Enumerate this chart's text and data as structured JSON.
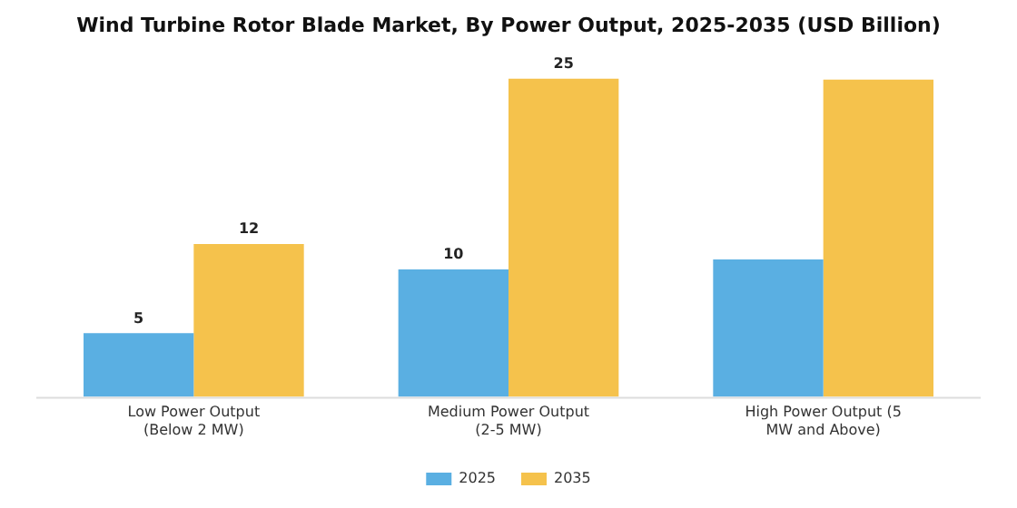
{
  "chart_data": {
    "type": "bar",
    "title": "Wind Turbine Rotor Blade Market, By Power Output, 2025-2035 (USD Billion)",
    "categories": [
      "Low Power Output (Below 2 MW)",
      "Medium Power Output (2-5 MW)",
      "High Power Output (5 MW and Above)"
    ],
    "series": [
      {
        "name": "2025",
        "color": "#5aafe2",
        "values": [
          5,
          10,
          10.8
        ],
        "value_labels": [
          "5",
          "10",
          null
        ]
      },
      {
        "name": "2035",
        "color": "#f5c24c",
        "values": [
          12,
          25,
          24.9
        ],
        "value_labels": [
          "12",
          "25",
          null
        ]
      }
    ],
    "legend": "bottom",
    "grid": false
  }
}
